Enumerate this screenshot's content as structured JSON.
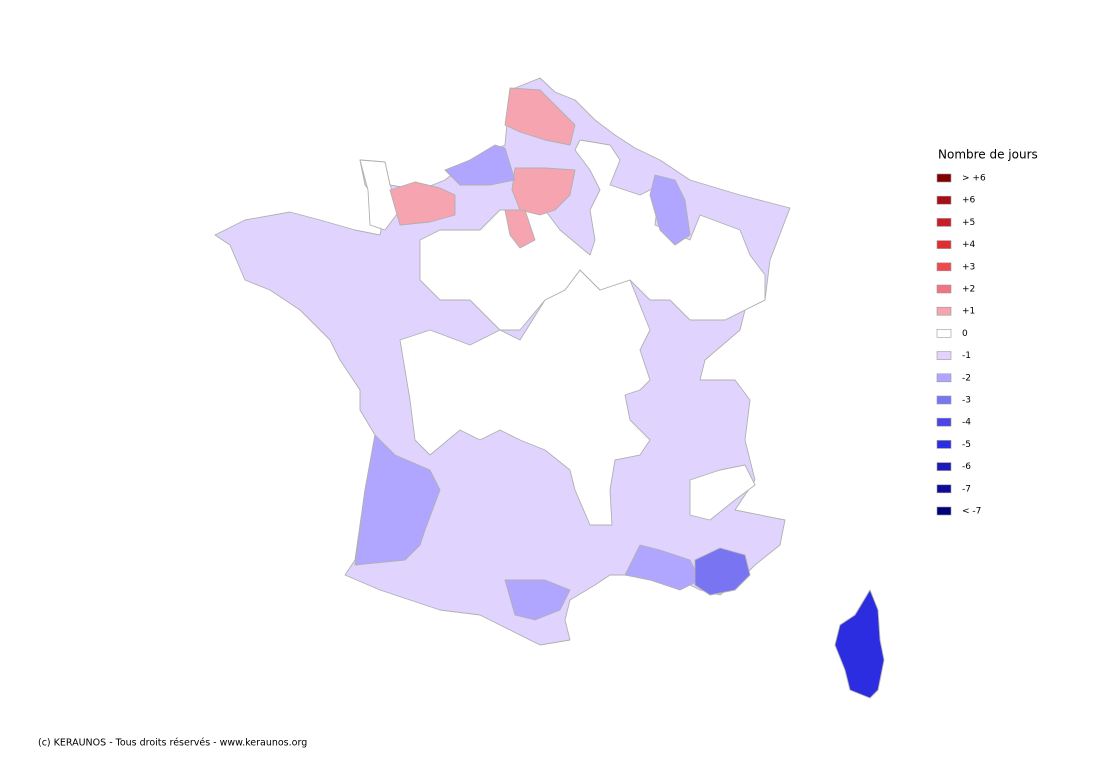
{
  "legend": {
    "title": "Nombre de jours",
    "items": [
      {
        "label": "> +6",
        "color": "#7f0000"
      },
      {
        "label": "+6",
        "color": "#a50f15"
      },
      {
        "label": "+5",
        "color": "#c81e28"
      },
      {
        "label": "+4",
        "color": "#e02e30"
      },
      {
        "label": "+3",
        "color": "#f04a4e"
      },
      {
        "label": "+2",
        "color": "#f07482"
      },
      {
        "label": "+1",
        "color": "#f5a4b0"
      },
      {
        "label": "0",
        "color": "#ffffff"
      },
      {
        "label": "-1",
        "color": "#e0d4ff"
      },
      {
        "label": "-2",
        "color": "#b0a6ff"
      },
      {
        "label": "-3",
        "color": "#7874f2"
      },
      {
        "label": "-4",
        "color": "#4c44e8"
      },
      {
        "label": "-5",
        "color": "#2c2ce0"
      },
      {
        "label": "-6",
        "color": "#1a1ab8"
      },
      {
        "label": "-7",
        "color": "#0c0c98"
      },
      {
        "label": "< -7",
        "color": "#00007a"
      }
    ]
  },
  "footer": "(c) KERAUNOS - Tous droits réservés - www.keraunos.org"
}
